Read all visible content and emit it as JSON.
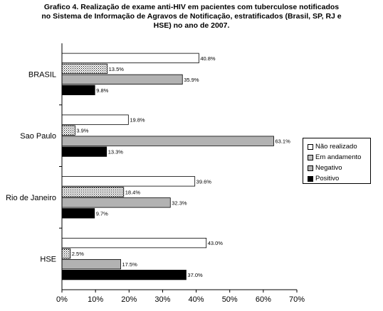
{
  "title_lines": [
    "Grafico 4. Realização de exame anti-HIV em pacientes com tuberculose notificados",
    "no Sistema de Informação de Agravos de Notificação, estratificados (Brasil, SP, RJ e",
    "HSE) no ano de 2007."
  ],
  "colors": {
    "nao_realizado": "#ffffff",
    "em_andamento": "dotted",
    "negativo": "#b2b2b2",
    "positivo": "#000000"
  },
  "chart_data": {
    "type": "bar",
    "orientation": "horizontal",
    "title": "Grafico 4. Realização de exame anti-HIV em pacientes com tuberculose notificados no Sistema de Informação de Agravos de Notificação, estratificados (Brasil, SP, RJ e HSE) no ano de 2007.",
    "categories": [
      "BRASIL",
      "Sao Paulo",
      "Rio de Janeiro",
      "HSE"
    ],
    "series": [
      {
        "name": "Não realizado",
        "values": [
          40.8,
          19.8,
          39.6,
          43.0
        ],
        "labels": [
          "40.8%",
          "19.8%",
          "39.6%",
          "43.0%"
        ]
      },
      {
        "name": "Em andamento",
        "values": [
          13.5,
          3.9,
          18.4,
          2.5
        ],
        "labels": [
          "13.5%",
          "3.9%",
          "18.4%",
          "2.5%"
        ]
      },
      {
        "name": "Negativo",
        "values": [
          35.9,
          63.1,
          32.3,
          17.5
        ],
        "labels": [
          "35.9%",
          "63.1%",
          "32.3%",
          "17.5%"
        ]
      },
      {
        "name": "Positivo",
        "values": [
          9.8,
          13.3,
          9.7,
          37.0
        ],
        "labels": [
          "9.8%",
          "13.3%",
          "9.7%",
          "37.0%"
        ]
      }
    ],
    "xlim": [
      0,
      70
    ],
    "x_ticks": [
      "0%",
      "10%",
      "20%",
      "30%",
      "40%",
      "50%",
      "60%",
      "70%"
    ],
    "xlabel": "",
    "ylabel": "",
    "grid": false,
    "legend_position": "right",
    "legend": [
      "Não realizado",
      "Em andamento",
      "Negativo",
      "Positivo"
    ]
  }
}
